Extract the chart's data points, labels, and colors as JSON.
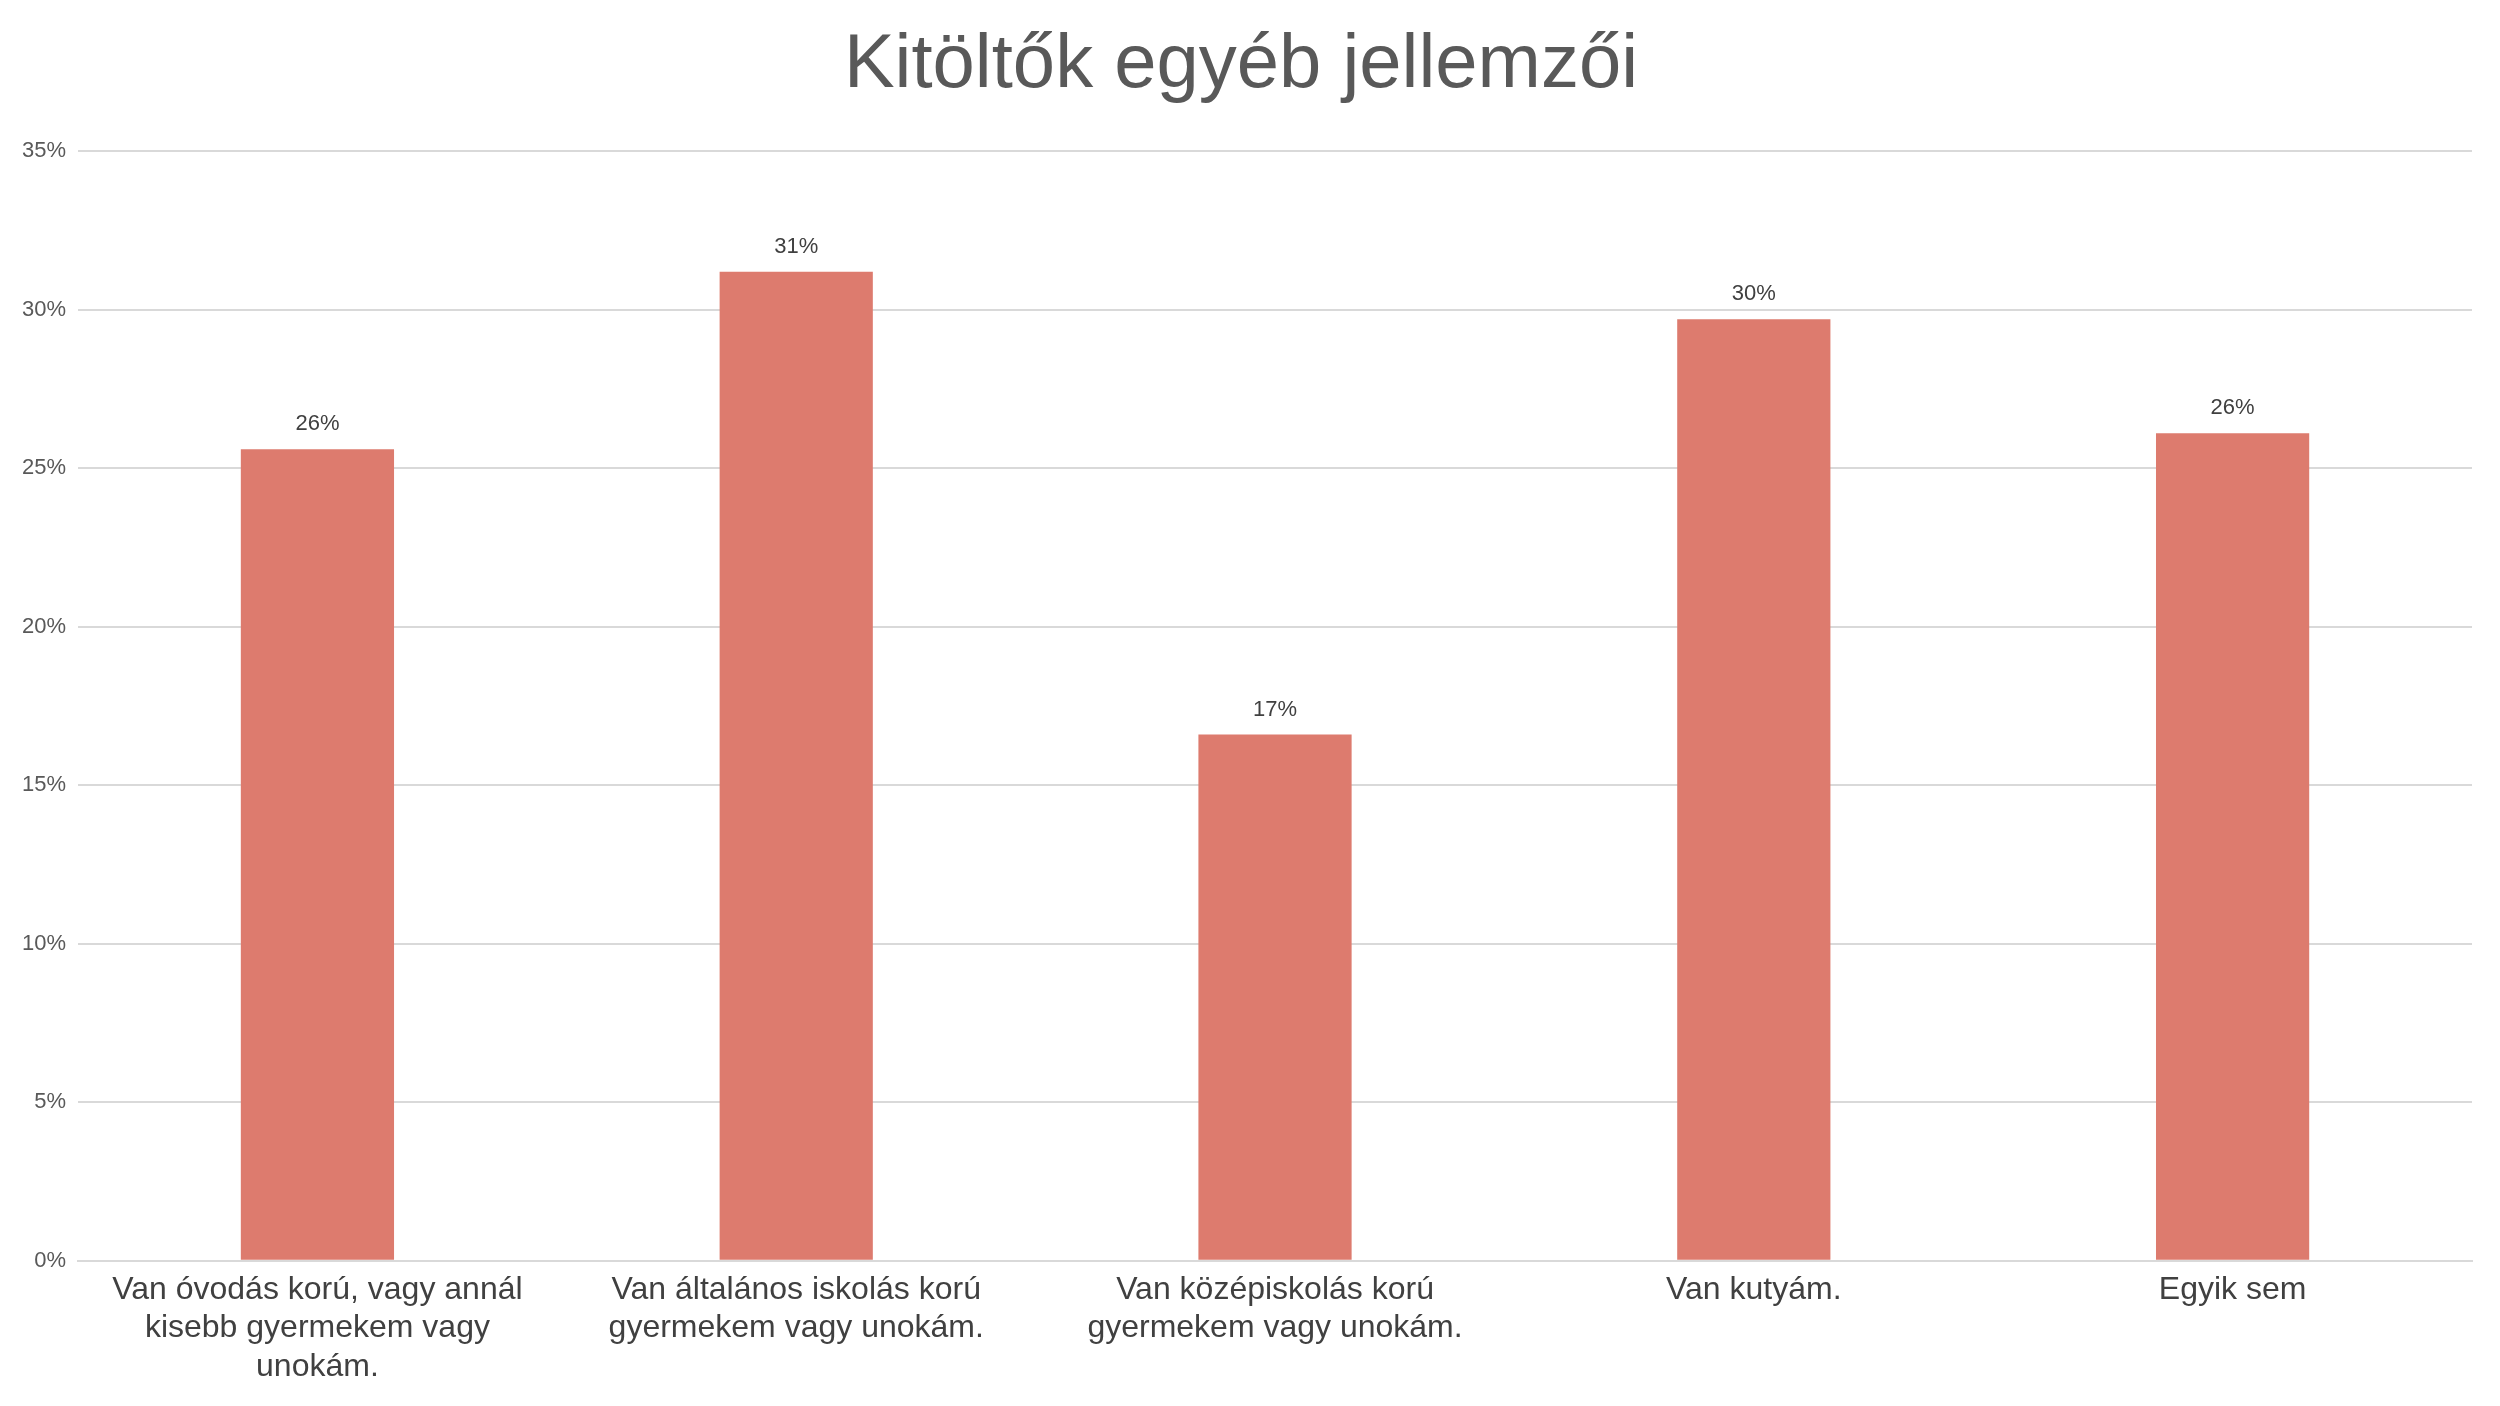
{
  "chart_data": {
    "type": "bar",
    "title": "Kitöltők egyéb jellemzői",
    "categories": [
      "Van óvodás korú, vagy annál kisebb gyermekem vagy unokám.",
      "Van általános iskolás korú gyermekem vagy unokám.",
      "Van középiskolás korú gyermekem vagy unokám.",
      "Van kutyám.",
      "Egyik sem"
    ],
    "values": [
      25.6,
      31.2,
      16.6,
      29.7,
      26.1
    ],
    "value_labels": [
      "26%",
      "31%",
      "17%",
      "30%",
      "26%"
    ],
    "color": "#dd7b6e",
    "ylim": [
      0,
      35
    ],
    "yticks": [
      {
        "value": 0,
        "label": "0%"
      },
      {
        "value": 5,
        "label": "5%"
      },
      {
        "value": 10,
        "label": "10%"
      },
      {
        "value": 15,
        "label": "15%"
      },
      {
        "value": 20,
        "label": "20%"
      },
      {
        "value": 25,
        "label": "25%"
      },
      {
        "value": 30,
        "label": "30%"
      },
      {
        "value": 35,
        "label": "35%"
      }
    ],
    "grid": "y",
    "legend": false
  }
}
